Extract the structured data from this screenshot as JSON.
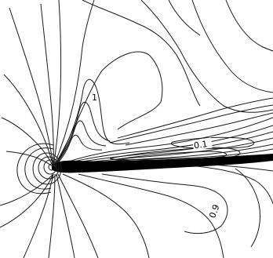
{
  "contour_labels": [
    {
      "name": "contour-label-1-upper",
      "text": "1"
    },
    {
      "name": "contour-label-0-1-wake",
      "text": "0.1"
    },
    {
      "name": "contour-label-0-9-lower",
      "text": "0.9"
    }
  ],
  "colors": {
    "line": "#1a1a1a",
    "background": "#ffffff",
    "body": "#000000"
  }
}
